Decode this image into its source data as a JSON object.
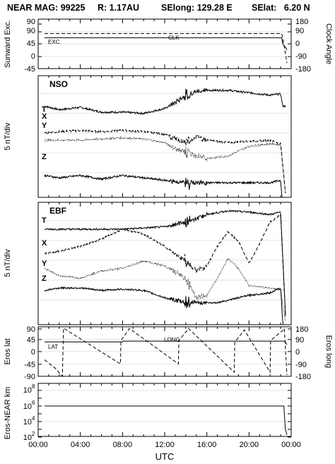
{
  "header": {
    "title": "NEAR MAG: 99225",
    "range": "R: 1.17AU",
    "selong": "SElong: 129.28 E",
    "selat": "SElat:   6.20 N"
  },
  "xaxis": {
    "label": "UTC",
    "ticks": [
      "00:00",
      "04:00",
      "08:00",
      "12:00",
      "16:00",
      "20:00",
      "00:00"
    ],
    "range_hours": [
      0,
      24
    ]
  },
  "panels": {
    "sunward": {
      "left_label": "Sunward Exc.",
      "right_label": "Clock Angle",
      "left_ticks": [
        "90",
        "45",
        "0",
        "-45",
        "-90"
      ],
      "right_ticks": [
        "180",
        "90",
        "0",
        "-90",
        "-180"
      ],
      "exc_label": "EXC.",
      "clk_label": "CLK"
    },
    "nso": {
      "title": "NSO",
      "ylabel": "5 nT/div",
      "components": [
        "T",
        "X",
        "Y",
        "Z"
      ]
    },
    "ebf": {
      "title": "EBF",
      "ylabel": "5 nT/div",
      "components": [
        "T",
        "X",
        "Y",
        "Z"
      ]
    },
    "eros": {
      "left_label": "Eros lat",
      "right_label": "Eros long",
      "left_ticks": [
        "90",
        "45",
        "0",
        "-45",
        "-90"
      ],
      "right_ticks": [
        "180",
        "90",
        "0",
        "-90",
        "-180"
      ],
      "lat_label": "LAT",
      "long_label": "LONG"
    },
    "distance": {
      "ylabel": "Eros-NEAR km",
      "ticks": [
        "10",
        "10",
        "10",
        "10"
      ],
      "exponents": [
        "8",
        "6",
        "4",
        "2"
      ]
    }
  },
  "chart_data": [
    {
      "type": "line",
      "title": "",
      "xlabel": "UTC",
      "ylabel": "Sunward Exc.",
      "y2label": "Clock Angle",
      "ylim": [
        -90,
        90
      ],
      "y2lim": [
        -180,
        180
      ],
      "series": [
        {
          "name": "EXC.",
          "style": "solid",
          "x": [
            0.6,
            23.1,
            23.2,
            23.45,
            23.6
          ],
          "y": [
            22,
            22,
            0,
            -12,
            -22
          ]
        },
        {
          "name": "CLK",
          "style": "dashed",
          "axis": "right",
          "x": [
            0.6,
            23.1,
            23.25,
            23.5,
            23.6
          ],
          "y": [
            75,
            75,
            20,
            -90,
            -140
          ]
        }
      ]
    },
    {
      "type": "line",
      "title": "NSO",
      "xlabel": "UTC",
      "ylabel": "5 nT/div",
      "series": [
        {
          "name": "T",
          "style": "solid",
          "x": [
            0.6,
            2,
            4,
            6,
            8,
            10,
            12,
            13,
            14,
            15,
            16,
            17,
            18,
            20,
            22,
            23,
            23.2,
            23.5
          ],
          "y": [
            -25,
            -28,
            -26,
            -30,
            -30,
            -31,
            -27,
            -22,
            -16,
            -13,
            -12,
            -12,
            -12,
            -14,
            -16,
            -15,
            -25,
            -25
          ]
        },
        {
          "name": "X",
          "style": "dashed",
          "x": [
            0.6,
            2,
            4,
            6,
            8,
            10,
            12,
            13,
            14,
            15,
            16,
            18,
            20,
            22,
            23,
            23.5
          ],
          "y": [
            -47,
            -46,
            -45,
            -46,
            -45,
            -46,
            -48,
            -52,
            -55,
            -50,
            -53,
            -55,
            -54,
            -53,
            -56,
            -100
          ]
        },
        {
          "name": "Y",
          "style": "dotted",
          "x": [
            0.6,
            2,
            4,
            6,
            8,
            10,
            12,
            13,
            14,
            15,
            16,
            18,
            20,
            22,
            23,
            23.5
          ],
          "y": [
            -53,
            -53,
            -53,
            -52,
            -51,
            -52,
            -55,
            -60,
            -63,
            -66,
            -68,
            -66,
            -58,
            -56,
            -57,
            -100
          ]
        },
        {
          "name": "Z",
          "style": "solid",
          "x": [
            0.6,
            2,
            4,
            6,
            8,
            10,
            12,
            14,
            16,
            18,
            20,
            22,
            23,
            23.5
          ],
          "y": [
            -82,
            -84,
            -82,
            -85,
            -82,
            -84,
            -86,
            -88,
            -88,
            -88,
            -88,
            -88,
            -86,
            -140
          ]
        }
      ]
    },
    {
      "type": "line",
      "title": "EBF",
      "xlabel": "UTC",
      "ylabel": "5 nT/div",
      "series": [
        {
          "name": "T",
          "style": "solid",
          "x": [
            0.6,
            2,
            4,
            6,
            8,
            10,
            12,
            14,
            16,
            18,
            20,
            22,
            23,
            23.5
          ],
          "y": [
            -22,
            -22,
            -22,
            -22,
            -22,
            -21,
            -20,
            -16,
            -10,
            -7,
            -8,
            -10,
            -8,
            -100
          ]
        },
        {
          "name": "X",
          "style": "dashed",
          "x": [
            0.6,
            2,
            4,
            6,
            8,
            10,
            12,
            14,
            15,
            16,
            17,
            18,
            19,
            20,
            21,
            22,
            23,
            23.5
          ],
          "y": [
            -42,
            -40,
            -36,
            -30,
            -22,
            -26,
            -36,
            -48,
            -56,
            -52,
            -36,
            -24,
            -32,
            -50,
            -34,
            -16,
            -10,
            -100
          ]
        },
        {
          "name": "Y",
          "style": "dotted",
          "x": [
            0.6,
            2,
            4,
            6,
            8,
            10,
            12,
            14,
            15,
            16,
            17,
            18,
            19,
            20,
            22,
            23,
            23.5
          ],
          "y": [
            -54,
            -60,
            -62,
            -56,
            -54,
            -48,
            -52,
            -62,
            -78,
            -76,
            -62,
            -46,
            -54,
            -68,
            -70,
            -72,
            -100
          ]
        },
        {
          "name": "Z",
          "style": "solid",
          "x": [
            0.6,
            2,
            4,
            6,
            8,
            10,
            12,
            13,
            14,
            15,
            16,
            17,
            18,
            20,
            22,
            23,
            23.5
          ],
          "y": [
            -72,
            -70,
            -70,
            -72,
            -71,
            -72,
            -78,
            -80,
            -82,
            -82,
            -82,
            -82,
            -80,
            -76,
            -74,
            -70,
            -140
          ]
        }
      ]
    },
    {
      "type": "line",
      "title": "",
      "xlabel": "UTC",
      "ylabel": "Eros lat",
      "y2label": "Eros long",
      "ylim": [
        -90,
        90
      ],
      "y2lim": [
        -180,
        180
      ],
      "series": [
        {
          "name": "LAT",
          "style": "solid",
          "x": [
            0.6,
            8,
            8.05,
            23.4,
            23.6
          ],
          "y": [
            35,
            35,
            38,
            38,
            25
          ]
        },
        {
          "name": "LONG",
          "style": "dashed",
          "axis": "right",
          "x": [
            0.6,
            1.6,
            2.3,
            2.4,
            7.8,
            7.85,
            8.6,
            8.65,
            13.3,
            13.35,
            14.2,
            14.25,
            18.6,
            18.65,
            19.5,
            19.55,
            22.0,
            22.05,
            23.3,
            23.35,
            23.6
          ],
          "y": [
            -60,
            -120,
            -180,
            170,
            -90,
            80,
            160,
            168,
            -90,
            80,
            160,
            168,
            -150,
            70,
            150,
            158,
            -150,
            80,
            160,
            168,
            -170
          ]
        }
      ]
    },
    {
      "type": "line",
      "title": "",
      "xlabel": "UTC",
      "ylabel": "Eros-NEAR km",
      "yscale": "log",
      "ylim": [
        10,
        100000000
      ],
      "series": [
        {
          "name": "distance",
          "style": "solid",
          "x": [
            0.6,
            23.3,
            23.45,
            23.6
          ],
          "y": [
            1000000,
            1000000,
            1000,
            200
          ]
        }
      ]
    }
  ]
}
